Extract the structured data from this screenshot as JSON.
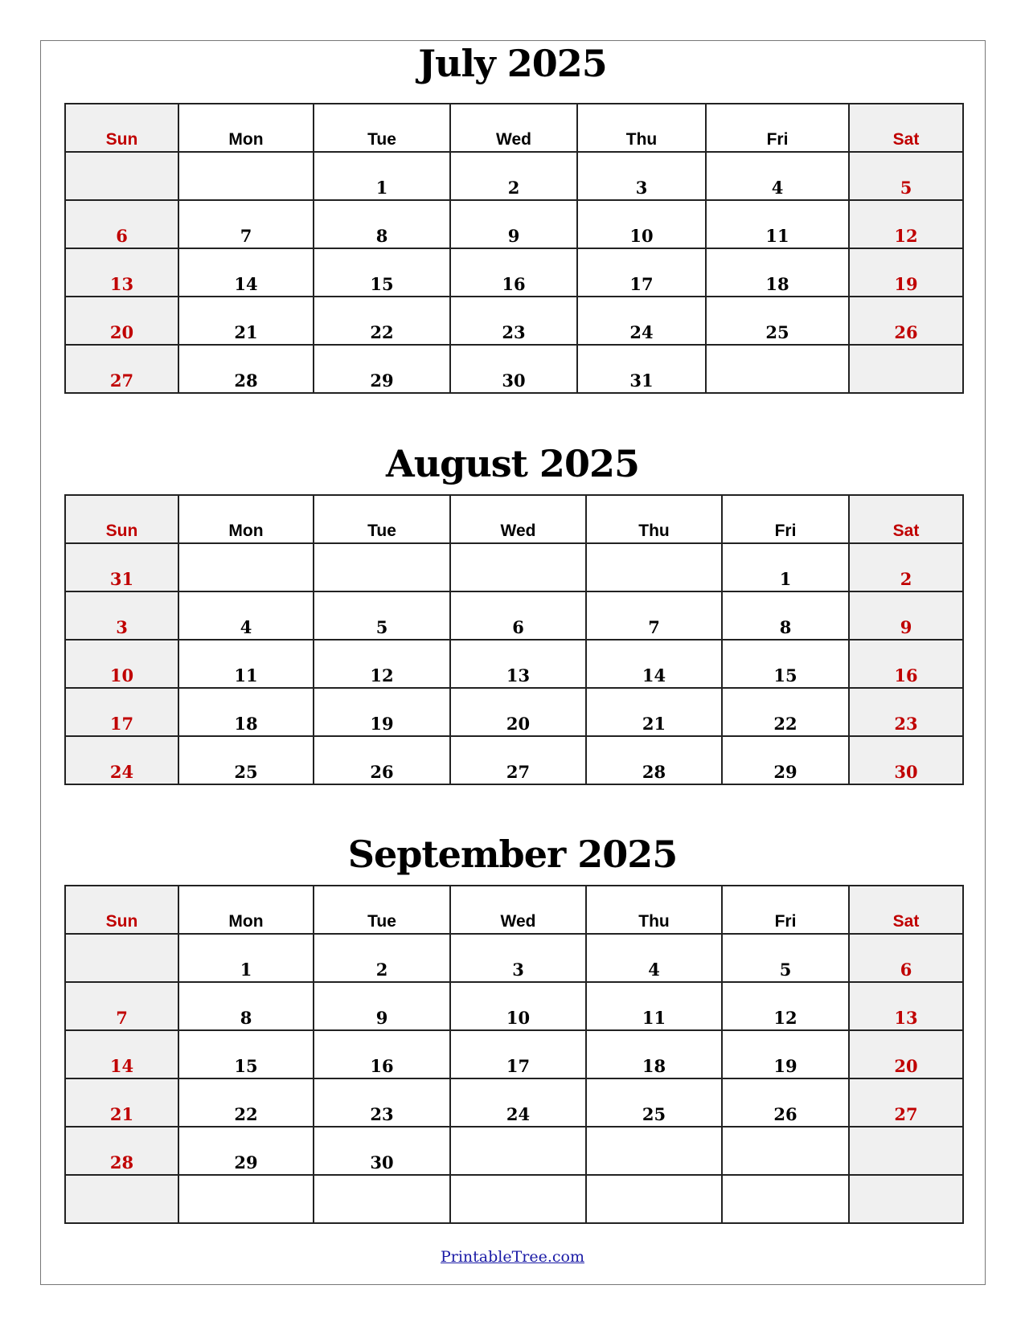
{
  "weekend_color": "#c00000",
  "weekend_bg": "#f0f0f0",
  "months": [
    {
      "title": "July 2025",
      "weekdays": [
        "Sun",
        "Mon",
        "Tue",
        "Wed",
        "Thu",
        "Fri",
        "Sat"
      ],
      "weeks": [
        [
          "",
          "",
          "1",
          "2",
          "3",
          "4",
          "5"
        ],
        [
          "6",
          "7",
          "8",
          "9",
          "10",
          "11",
          "12"
        ],
        [
          "13",
          "14",
          "15",
          "16",
          "17",
          "18",
          "19"
        ],
        [
          "20",
          "21",
          "22",
          "23",
          "24",
          "25",
          "26"
        ],
        [
          "27",
          "28",
          "29",
          "30",
          "31",
          "",
          ""
        ]
      ]
    },
    {
      "title": "August 2025",
      "weekdays": [
        "Sun",
        "Mon",
        "Tue",
        "Wed",
        "Thu",
        "Fri",
        "Sat"
      ],
      "weeks": [
        [
          "31",
          "",
          "",
          "",
          "",
          "1",
          "2"
        ],
        [
          "3",
          "4",
          "5",
          "6",
          "7",
          "8",
          "9"
        ],
        [
          "10",
          "11",
          "12",
          "13",
          "14",
          "15",
          "16"
        ],
        [
          "17",
          "18",
          "19",
          "20",
          "21",
          "22",
          "23"
        ],
        [
          "24",
          "25",
          "26",
          "27",
          "28",
          "29",
          "30"
        ]
      ]
    },
    {
      "title": "September 2025",
      "weekdays": [
        "Sun",
        "Mon",
        "Tue",
        "Wed",
        "Thu",
        "Fri",
        "Sat"
      ],
      "weeks": [
        [
          "",
          "1",
          "2",
          "3",
          "4",
          "5",
          "6"
        ],
        [
          "7",
          "8",
          "9",
          "10",
          "11",
          "12",
          "13"
        ],
        [
          "14",
          "15",
          "16",
          "17",
          "18",
          "19",
          "20"
        ],
        [
          "21",
          "22",
          "23",
          "24",
          "25",
          "26",
          "27"
        ],
        [
          "28",
          "29",
          "30",
          "",
          "",
          "",
          ""
        ],
        [
          "",
          "",
          "",
          "",
          "",
          "",
          ""
        ]
      ]
    }
  ],
  "footer": {
    "link": "PrintableTree.com"
  }
}
